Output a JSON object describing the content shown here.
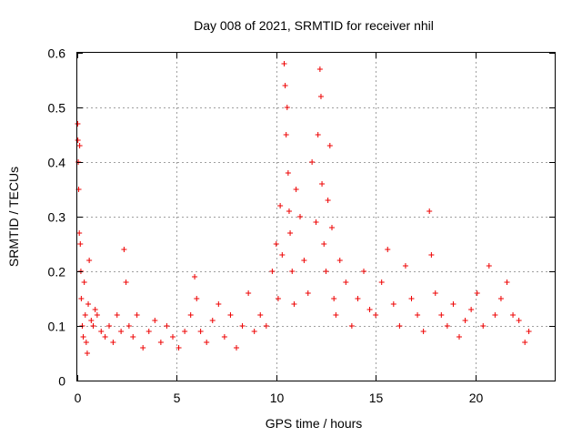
{
  "chart_data": {
    "type": "scatter",
    "title": "Day 008 of 2021, SRMTID for receiver nhil",
    "xlabel": "GPS time / hours",
    "ylabel": "SRMTID / TECUs",
    "xlim": [
      0,
      24
    ],
    "ylim": [
      0,
      0.6
    ],
    "x_ticks": [
      0,
      5,
      10,
      15,
      20
    ],
    "x_tick_labels": [
      "0",
      "5",
      "10",
      "15",
      "20"
    ],
    "y_ticks": [
      0,
      0.1,
      0.2,
      0.3,
      0.4,
      0.5,
      0.6
    ],
    "y_tick_labels": [
      "0",
      "0.1",
      "0.2",
      "0.3",
      "0.4",
      "0.5",
      "0.6"
    ],
    "grid": true,
    "marker": "+",
    "color": "#ee0000",
    "series": [
      {
        "name": "SRMTID",
        "x": [
          0.02,
          0.03,
          0.05,
          0.07,
          0.1,
          0.12,
          0.15,
          0.18,
          0.2,
          0.25,
          0.3,
          0.35,
          0.4,
          0.45,
          0.5,
          0.55,
          0.6,
          0.7,
          0.8,
          0.9,
          1.0,
          1.2,
          1.4,
          1.6,
          1.8,
          2.0,
          2.2,
          2.35,
          2.45,
          2.6,
          2.8,
          3.0,
          3.3,
          3.6,
          3.9,
          4.2,
          4.5,
          4.8,
          5.1,
          5.4,
          5.7,
          5.9,
          6.0,
          6.2,
          6.5,
          6.8,
          7.1,
          7.4,
          7.7,
          8.0,
          8.3,
          8.6,
          8.9,
          9.2,
          9.5,
          9.8,
          10.0,
          10.1,
          10.2,
          10.3,
          10.4,
          10.45,
          10.5,
          10.55,
          10.6,
          10.65,
          10.7,
          10.8,
          10.9,
          11.0,
          11.2,
          11.4,
          11.6,
          11.8,
          12.0,
          12.1,
          12.2,
          12.25,
          12.3,
          12.4,
          12.5,
          12.6,
          12.7,
          12.8,
          12.9,
          13.0,
          13.2,
          13.5,
          13.8,
          14.1,
          14.4,
          14.7,
          15.0,
          15.3,
          15.6,
          15.9,
          16.2,
          16.5,
          16.8,
          17.1,
          17.4,
          17.7,
          17.8,
          18.0,
          18.3,
          18.6,
          18.9,
          19.2,
          19.5,
          19.8,
          20.1,
          20.4,
          20.7,
          21.0,
          21.3,
          21.6,
          21.9,
          22.2,
          22.5,
          22.7
        ],
        "y": [
          0.47,
          0.44,
          0.4,
          0.35,
          0.27,
          0.43,
          0.25,
          0.2,
          0.15,
          0.1,
          0.08,
          0.18,
          0.12,
          0.07,
          0.05,
          0.14,
          0.22,
          0.11,
          0.1,
          0.13,
          0.12,
          0.09,
          0.08,
          0.1,
          0.07,
          0.12,
          0.09,
          0.24,
          0.18,
          0.1,
          0.08,
          0.12,
          0.06,
          0.09,
          0.11,
          0.07,
          0.1,
          0.08,
          0.06,
          0.09,
          0.12,
          0.19,
          0.15,
          0.09,
          0.07,
          0.11,
          0.14,
          0.08,
          0.12,
          0.06,
          0.1,
          0.16,
          0.09,
          0.12,
          0.1,
          0.2,
          0.25,
          0.15,
          0.32,
          0.23,
          0.58,
          0.54,
          0.45,
          0.5,
          0.38,
          0.31,
          0.27,
          0.2,
          0.14,
          0.35,
          0.3,
          0.22,
          0.16,
          0.4,
          0.29,
          0.45,
          0.57,
          0.52,
          0.36,
          0.25,
          0.2,
          0.33,
          0.43,
          0.28,
          0.15,
          0.12,
          0.22,
          0.18,
          0.1,
          0.15,
          0.2,
          0.13,
          0.12,
          0.18,
          0.24,
          0.14,
          0.1,
          0.21,
          0.15,
          0.12,
          0.09,
          0.31,
          0.23,
          0.16,
          0.12,
          0.1,
          0.14,
          0.08,
          0.11,
          0.13,
          0.16,
          0.1,
          0.21,
          0.12,
          0.15,
          0.18,
          0.12,
          0.11,
          0.07,
          0.09
        ]
      }
    ]
  }
}
